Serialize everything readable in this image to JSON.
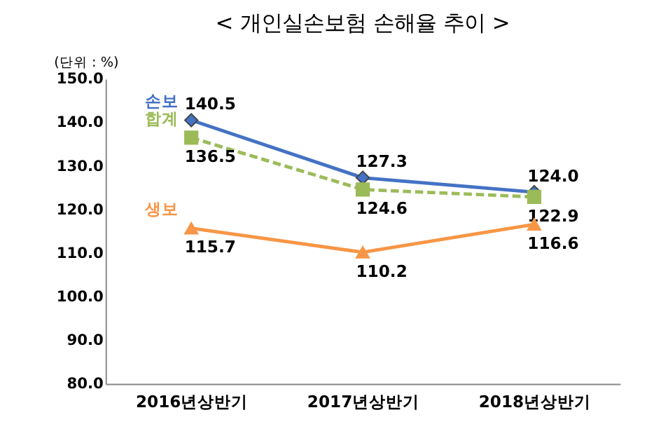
{
  "chart_data": {
    "type": "line",
    "title": "< 개인실손보험 손해율 추이 >",
    "annotations": [
      "(단위 : %)"
    ],
    "categories": [
      "2016년상반기",
      "2017년상반기",
      "2018년상반기"
    ],
    "series": [
      {
        "name": "손보",
        "color": "#4472c4",
        "values": [
          140.5,
          127.3,
          124.0
        ],
        "value_labels": [
          "140.5",
          "127.3",
          "124.0"
        ],
        "marker": "diamond",
        "line_style": "solid"
      },
      {
        "name": "합계",
        "color": "#9bbb59",
        "values": [
          136.5,
          124.6,
          122.9
        ],
        "value_labels": [
          "136.5",
          "124.6",
          "122.9"
        ],
        "marker": "square",
        "line_style": "dashed"
      },
      {
        "name": "생보",
        "color": "#f79646",
        "values": [
          115.7,
          110.2,
          116.6
        ],
        "value_labels": [
          "115.7",
          "110.2",
          "116.6"
        ],
        "marker": "triangle",
        "line_style": "solid"
      }
    ],
    "ylim": [
      80,
      150
    ],
    "yticks": [
      {
        "value": 80,
        "label": "80.0"
      },
      {
        "value": 90,
        "label": "90.0"
      },
      {
        "value": 100,
        "label": "100.0"
      },
      {
        "value": 110,
        "label": "110.0"
      },
      {
        "value": 120,
        "label": "120.0"
      },
      {
        "value": 130,
        "label": "130.0"
      },
      {
        "value": 140,
        "label": "140.0"
      },
      {
        "value": 150,
        "label": "150.0"
      }
    ],
    "grid": false,
    "legend": false
  }
}
